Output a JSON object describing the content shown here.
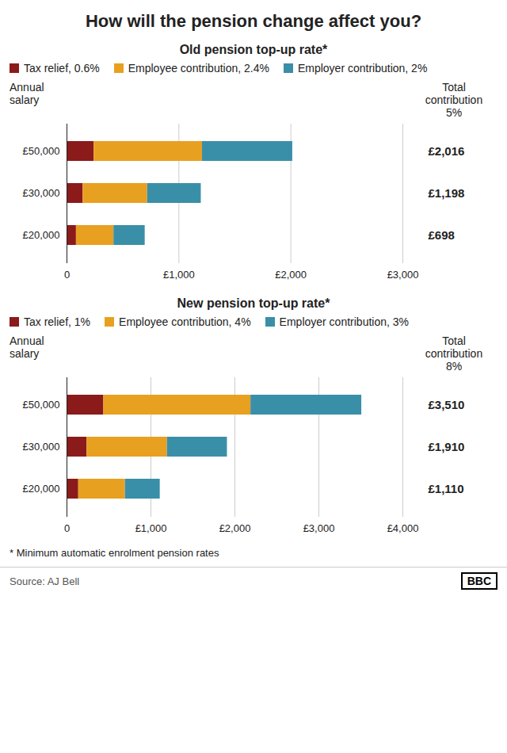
{
  "title": "How will the pension change affect you?",
  "footnote": "* Minimum automatic enrolment pension rates",
  "source": "Source: AJ Bell",
  "logo": "BBC",
  "chart_data": [
    {
      "type": "bar",
      "orientation": "horizontal",
      "stacked": true,
      "title": "Old pension top-up rate*",
      "ylabel": "Annual\nsalary",
      "categories": [
        "£50,000",
        "£30,000",
        "£20,000"
      ],
      "series": [
        {
          "name": "Tax relief, 0.6%",
          "color": "#8B1A1A",
          "values": [
            242,
            144,
            84
          ]
        },
        {
          "name": "Employee contribution, 2.4%",
          "color": "#E8A020",
          "values": [
            968,
            576,
            335
          ]
        },
        {
          "name": "Employer contribution, 2%",
          "color": "#3A8FA8",
          "values": [
            806,
            479,
            279
          ]
        }
      ],
      "xlim": [
        0,
        3000
      ],
      "xticks": [
        0,
        {
          "value": 1000,
          "label": "£1,000"
        },
        {
          "value": 2000,
          "label": "£2,000"
        },
        {
          "value": 3000,
          "label": "£3,000"
        }
      ],
      "grid": true,
      "legend": "top",
      "annotations": [
        "Total\ncontribution\n5%"
      ],
      "totals": {
        "values": [
          2016,
          1198,
          698
        ],
        "value_labels": [
          "£2,016",
          "£1,198",
          "£698"
        ]
      }
    },
    {
      "type": "bar",
      "orientation": "horizontal",
      "stacked": true,
      "title": "New pension top-up rate*",
      "ylabel": "Annual\nsalary",
      "categories": [
        "£50,000",
        "£30,000",
        "£20,000"
      ],
      "series": [
        {
          "name": "Tax relief, 1%",
          "color": "#8B1A1A",
          "values": [
            438,
            239,
            139
          ]
        },
        {
          "name": "Employee contribution, 4%",
          "color": "#E8A020",
          "values": [
            1752,
            956,
            556
          ]
        },
        {
          "name": "Employer contribution, 3%",
          "color": "#3A8FA8",
          "values": [
            1320,
            715,
            415
          ]
        }
      ],
      "xlim": [
        0,
        4000
      ],
      "xticks": [
        0,
        {
          "value": 1000,
          "label": "£1,000"
        },
        {
          "value": 2000,
          "label": "£2,000"
        },
        {
          "value": 3000,
          "label": "£3,000"
        },
        {
          "value": 4000,
          "label": "£4,000"
        }
      ],
      "grid": true,
      "legend": "top",
      "annotations": [
        "Total\ncontribution\n8%"
      ],
      "totals": {
        "values": [
          3510,
          1910,
          1110
        ],
        "value_labels": [
          "£3,510",
          "£1,910",
          "£1,110"
        ]
      }
    }
  ]
}
